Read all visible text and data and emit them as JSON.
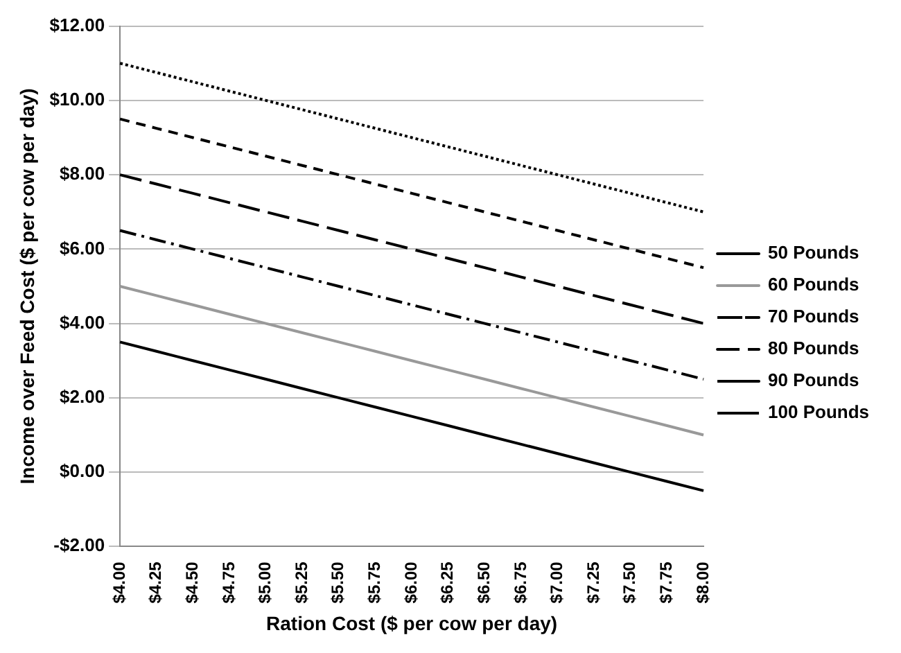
{
  "chart_data": {
    "type": "line",
    "xlabel": "Ration Cost ($ per cow per day)",
    "ylabel": "Income over Feed Cost ($ per cow per day)",
    "categories": [
      "$4.00",
      "$4.25",
      "$4.50",
      "$4.75",
      "$5.00",
      "$5.25",
      "$5.50",
      "$5.75",
      "$6.00",
      "$6.25",
      "$6.50",
      "$6.75",
      "$7.00",
      "$7.25",
      "$7.50",
      "$7.75",
      "$8.00"
    ],
    "series": [
      {
        "name": "50 Pounds",
        "color": "#000000",
        "line_style": "solid",
        "values": [
          3.5,
          3.25,
          3,
          2.75,
          2.5,
          2.25,
          2,
          1.75,
          1.5,
          1.25,
          1,
          0.75,
          0.5,
          0.25,
          0,
          -0.25,
          -0.5
        ]
      },
      {
        "name": "60 Pounds",
        "color": "#999999",
        "line_style": "solid",
        "values": [
          5,
          4.75,
          4.5,
          4.25,
          4,
          3.75,
          3.5,
          3.25,
          3,
          2.75,
          2.5,
          2.25,
          2,
          1.75,
          1.5,
          1.25,
          1
        ]
      },
      {
        "name": "70 Pounds",
        "color": "#000000",
        "line_style": "dashdot",
        "values": [
          6.5,
          6.25,
          6,
          5.75,
          5.5,
          5.25,
          5,
          4.75,
          4.5,
          4.25,
          4,
          3.75,
          3.5,
          3.25,
          3,
          2.75,
          2.5
        ]
      },
      {
        "name": "80 Pounds",
        "color": "#000000",
        "line_style": "longdash",
        "values": [
          8,
          7.75,
          7.5,
          7.25,
          7,
          6.75,
          6.5,
          6.25,
          6,
          5.75,
          5.5,
          5.25,
          5,
          4.75,
          4.5,
          4.25,
          4
        ]
      },
      {
        "name": "90 Pounds",
        "color": "#000000",
        "line_style": "dashed",
        "values": [
          9.5,
          9.25,
          9,
          8.75,
          8.5,
          8.25,
          8,
          7.75,
          7.5,
          7.25,
          7,
          6.75,
          6.5,
          6.25,
          6,
          5.75,
          5.5
        ]
      },
      {
        "name": "100 Pounds",
        "color": "#000000",
        "line_style": "dotted",
        "values": [
          11,
          10.75,
          10.5,
          10.25,
          10,
          9.75,
          9.5,
          9.25,
          9,
          8.75,
          8.5,
          8.25,
          8,
          7.75,
          7.5,
          7.25,
          7
        ]
      }
    ],
    "ylim": [
      -2,
      12
    ],
    "yticks": [
      {
        "value": -2,
        "label": "-$2.00"
      },
      {
        "value": 0,
        "label": "$0.00"
      },
      {
        "value": 2,
        "label": "$2.00"
      },
      {
        "value": 4,
        "label": "$4.00"
      },
      {
        "value": 6,
        "label": "$6.00"
      },
      {
        "value": 8,
        "label": "$8.00"
      },
      {
        "value": 10,
        "label": "$10.00"
      },
      {
        "value": 12,
        "label": "$12.00"
      }
    ],
    "grid": "y",
    "legend": "right",
    "marker": "none"
  }
}
